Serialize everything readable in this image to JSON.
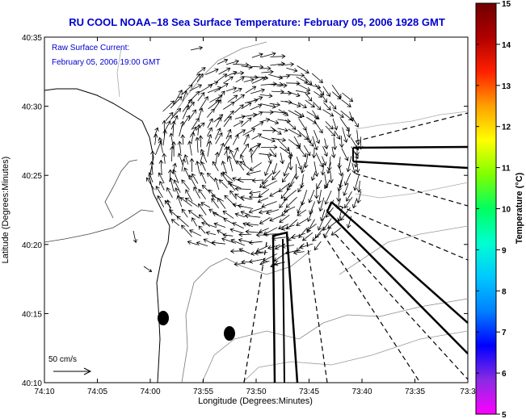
{
  "title": "RU COOL  NOAA–18  Sea Surface Temperature:  February 05, 2006 1928 GMT",
  "current_legend": {
    "line1": "Raw Surface Current:",
    "line2": "February 05, 2006 19:00 GMT"
  },
  "x_axis": {
    "label": "Longitude (Degrees:Minutes)",
    "ticks": [
      "74:10",
      "74:05",
      "74:00",
      "73:55",
      "73:50",
      "73:45",
      "73:40",
      "73:35",
      "73:3"
    ]
  },
  "y_axis": {
    "label": "Latitude (Degrees:Minutes)",
    "ticks": [
      "40:35",
      "40:30",
      "40:25",
      "40:20",
      "40:15",
      "40:10"
    ]
  },
  "colorbar": {
    "label": "Temperature (°C)",
    "ticks": [
      "15",
      "14",
      "13",
      "12",
      "11",
      "10",
      "9",
      "8",
      "7",
      "6",
      "5"
    ],
    "colors": [
      "#ff00ff",
      "#8a2be2",
      "#0000ff",
      "#0080ff",
      "#00c8ff",
      "#00ffd0",
      "#00ff60",
      "#80ff00",
      "#ffff00",
      "#ffa000",
      "#ff2000",
      "#b00000",
      "#700000"
    ]
  },
  "scale_arrow": {
    "label": "50 cm/s"
  },
  "chart_data": {
    "type": "quiver",
    "x_range": [
      "74:10",
      "73:30"
    ],
    "y_range": [
      "40:10",
      "40:35"
    ],
    "field": "surface current vectors (clockwise eddy)",
    "eddy_center": {
      "lon": "73:52",
      "lat": "40:26"
    }
  }
}
